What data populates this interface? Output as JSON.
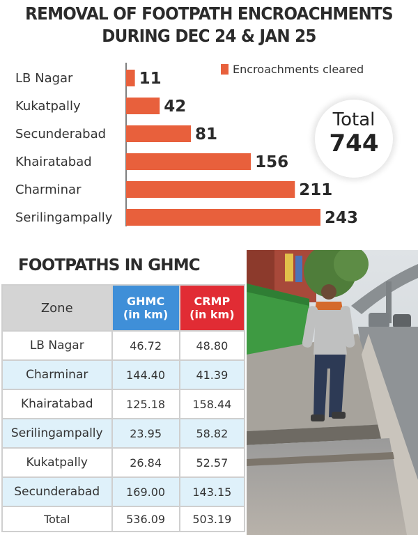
{
  "header": {
    "line1": "REMOVAL OF FOOTPATH ENCROACHMENTS",
    "line2": "DURING DEC 24 & JAN 25"
  },
  "chart_data": {
    "type": "bar",
    "orientation": "horizontal",
    "title": "REMOVAL OF FOOTPATH ENCROACHMENTS DURING DEC 24 & JAN 25",
    "categories": [
      "LB Nagar",
      "Kukatpally",
      "Secunderabad",
      "Khairatabad",
      "Charminar",
      "Serilingampally"
    ],
    "series": [
      {
        "name": "Encroachments cleared",
        "values": [
          11,
          42,
          81,
          156,
          211,
          243
        ]
      }
    ],
    "xlim": [
      0,
      243
    ],
    "legend": "top-right",
    "grid": false,
    "colors": {
      "bar": "#e8603c",
      "axis": "#555555"
    }
  },
  "total": {
    "label": "Total",
    "value": "744"
  },
  "table": {
    "title": "FOOTPATHS IN GHMC",
    "headers": {
      "zone": "Zone",
      "ghmc": "GHMC",
      "ghmc_unit": "(in km)",
      "crmp": "CRMP",
      "crmp_unit": "(in km)"
    },
    "rows": [
      {
        "zone": "LB Nagar",
        "ghmc": "46.72",
        "crmp": "48.80"
      },
      {
        "zone": "Charminar",
        "ghmc": "144.40",
        "crmp": "41.39"
      },
      {
        "zone": "Khairatabad",
        "ghmc": "125.18",
        "crmp": "158.44"
      },
      {
        "zone": "Serilingampally",
        "ghmc": "23.95",
        "crmp": "58.82"
      },
      {
        "zone": "Kukatpally",
        "ghmc": "26.84",
        "crmp": "52.57"
      },
      {
        "zone": "Secunderabad",
        "ghmc": "169.00",
        "crmp": "143.15"
      }
    ],
    "total": {
      "zone": "Total",
      "ghmc": "536.09",
      "crmp": "503.19"
    },
    "colors": {
      "header_gray": "#d4d4d4",
      "ghmc_blue": "#3f8fd8",
      "crmp_red": "#e12c34",
      "row_alt": "#dff1fa"
    }
  },
  "photo": {
    "icon": "photo-street-scene"
  }
}
